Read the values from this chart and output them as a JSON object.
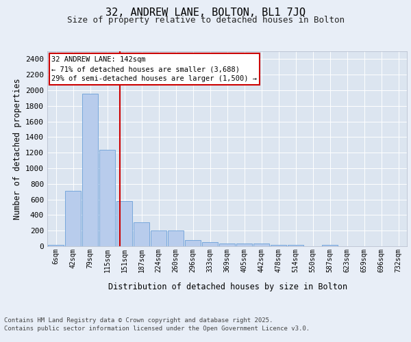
{
  "title1": "32, ANDREW LANE, BOLTON, BL1 7JQ",
  "title2": "Size of property relative to detached houses in Bolton",
  "xlabel": "Distribution of detached houses by size in Bolton",
  "ylabel": "Number of detached properties",
  "categories": [
    "6sqm",
    "42sqm",
    "79sqm",
    "115sqm",
    "151sqm",
    "187sqm",
    "224sqm",
    "260sqm",
    "296sqm",
    "333sqm",
    "369sqm",
    "405sqm",
    "442sqm",
    "478sqm",
    "514sqm",
    "550sqm",
    "587sqm",
    "623sqm",
    "659sqm",
    "696sqm",
    "732sqm"
  ],
  "values": [
    15,
    710,
    1960,
    1240,
    575,
    305,
    200,
    200,
    80,
    50,
    38,
    38,
    38,
    18,
    18,
    0,
    18,
    0,
    0,
    0,
    0
  ],
  "bar_color": "#b8ccec",
  "bar_edge_color": "#6a9fd8",
  "vline_x": 3.72,
  "annotation_lines": [
    "32 ANDREW LANE: 142sqm",
    "← 71% of detached houses are smaller (3,688)",
    "29% of semi-detached houses are larger (1,500) →"
  ],
  "annotation_box_color": "#cc0000",
  "annotation_text_color": "#000000",
  "bg_color": "#e8eef7",
  "plot_bg_color": "#dce5f0",
  "grid_color": "#ffffff",
  "footer1": "Contains HM Land Registry data © Crown copyright and database right 2025.",
  "footer2": "Contains public sector information licensed under the Open Government Licence v3.0.",
  "ylim": [
    0,
    2500
  ],
  "yticks": [
    0,
    200,
    400,
    600,
    800,
    1000,
    1200,
    1400,
    1600,
    1800,
    2000,
    2200,
    2400
  ]
}
